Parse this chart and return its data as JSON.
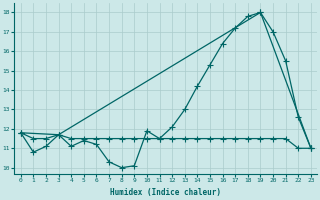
{
  "xlabel": "Humidex (Indice chaleur)",
  "background_color": "#cce8e8",
  "grid_color": "#aacccc",
  "line_color": "#006666",
  "line1_x": [
    0,
    1,
    2,
    3,
    4,
    5,
    6,
    7,
    8,
    9,
    10,
    11,
    12,
    13,
    14,
    15,
    16,
    17,
    18,
    19,
    20,
    21,
    22,
    23
  ],
  "line1_y": [
    11.8,
    10.8,
    11.1,
    11.7,
    11.1,
    11.4,
    11.2,
    10.3,
    10.0,
    10.1,
    11.9,
    11.5,
    12.1,
    13.0,
    14.2,
    15.3,
    16.4,
    17.2,
    17.8,
    18.0,
    17.0,
    15.5,
    12.6,
    11.0
  ],
  "line2_x": [
    0,
    3,
    19,
    23
  ],
  "line2_y": [
    11.8,
    11.7,
    18.0,
    11.0
  ],
  "line3_x": [
    0,
    1,
    2,
    3,
    4,
    5,
    6,
    7,
    8,
    9,
    10,
    11,
    12,
    13,
    14,
    15,
    16,
    17,
    18,
    19,
    20,
    21,
    22,
    23
  ],
  "line3_y": [
    11.8,
    11.5,
    11.5,
    11.7,
    11.5,
    11.5,
    11.5,
    11.5,
    11.5,
    11.5,
    11.5,
    11.5,
    11.5,
    11.5,
    11.5,
    11.5,
    11.5,
    11.5,
    11.5,
    11.5,
    11.5,
    11.5,
    11.0,
    11.0
  ],
  "xlim": [
    -0.5,
    23.5
  ],
  "ylim": [
    9.7,
    18.5
  ],
  "xticks": [
    0,
    1,
    2,
    3,
    4,
    5,
    6,
    7,
    8,
    9,
    10,
    11,
    12,
    13,
    14,
    15,
    16,
    17,
    18,
    19,
    20,
    21,
    22,
    23
  ],
  "yticks": [
    10,
    11,
    12,
    13,
    14,
    15,
    16,
    17,
    18
  ]
}
